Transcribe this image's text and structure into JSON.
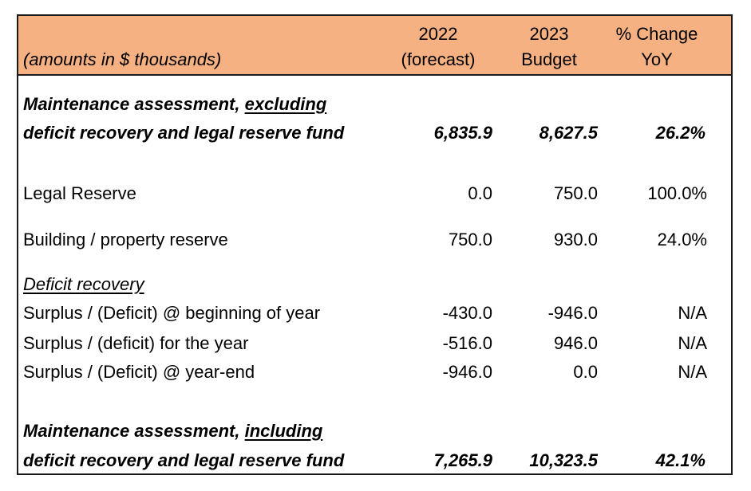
{
  "header": {
    "units_note": "(amounts in $ thousands)",
    "col_2022_line1": "2022",
    "col_2022_line2": "(forecast)",
    "col_2023_line1": "2023",
    "col_2023_line2": "Budget",
    "col_change_line1": "% Change",
    "col_change_line2": "YoY"
  },
  "rows": {
    "excl": {
      "label_line1_prefix": "Maintenance assessment, ",
      "label_line1_underlined": "excluding",
      "label_line2": "deficit recovery and legal reserve fund",
      "v2022": "6,835.9",
      "v2023": "8,627.5",
      "change": "26.2%"
    },
    "legal_reserve": {
      "label": "Legal Reserve",
      "v2022": "0.0",
      "v2023": "750.0",
      "change": "100.0%"
    },
    "building_reserve": {
      "label": "Building / property reserve",
      "v2022": "750.0",
      "v2023": "930.0",
      "change": "24.0%"
    },
    "deficit_heading": {
      "label": "Deficit recovery"
    },
    "surplus_begin": {
      "label": "Surplus / (Deficit) @ beginning of year",
      "v2022": "-430.0",
      "v2023": "-946.0",
      "change": "N/A"
    },
    "surplus_year": {
      "label": "Surplus / (deficit) for the year",
      "v2022": "-516.0",
      "v2023": "946.0",
      "change": "N/A"
    },
    "surplus_end": {
      "label": "Surplus / (Deficit) @ year-end",
      "v2022": "-946.0",
      "v2023": "0.0",
      "change": "N/A"
    },
    "incl": {
      "label_line1_prefix": "Maintenance assessment, ",
      "label_line1_underlined": "including",
      "label_line2": "deficit recovery and legal reserve fund",
      "v2022": "7,265.9",
      "v2023": "10,323.5",
      "change": "42.1%"
    }
  },
  "colors": {
    "header_fill": "#f6b183",
    "border": "#1a1a1a"
  }
}
